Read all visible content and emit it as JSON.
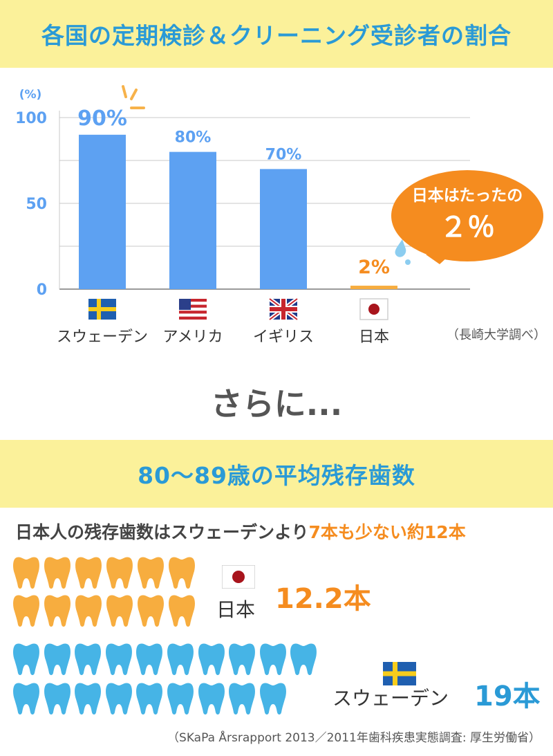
{
  "chart_title": "各国の定期検診＆クリーニング受診者の割合",
  "chart_data": {
    "type": "bar",
    "categories": [
      "スウェーデン",
      "アメリカ",
      "イギリス",
      "日本"
    ],
    "values": [
      90,
      80,
      70,
      2
    ],
    "value_labels": [
      "90%",
      "80%",
      "70%",
      "2%"
    ],
    "ylabel": "(%)",
    "ylim": [
      0,
      100
    ],
    "yticks": [
      "0",
      "50",
      "100"
    ],
    "grid": true,
    "colors": {
      "bar": "#5da1f2",
      "highlight_bar": "#f7ad3f",
      "axis_text": "#5da1f2"
    }
  },
  "flags": [
    "sweden-flag",
    "usa-flag",
    "uk-flag",
    "japan-flag"
  ],
  "callout": {
    "line1": "日本はたったの",
    "line2": "２％",
    "color": "#f58c1f"
  },
  "source1": "（長崎大学調べ）",
  "transition": "さらに...",
  "section2_title": "80〜89歳の平均残存歯数",
  "teeth_headline": {
    "part1": "日本人の残存歯数はスウェーデンより",
    "highlight": "7本も少ない約12本"
  },
  "japan": {
    "label": "日本",
    "count": "12.2本",
    "teeth": 12,
    "color": "#f7ad3f",
    "count_color": "#f58c1f"
  },
  "sweden": {
    "label": "スウェーデン",
    "count": "19本",
    "teeth": 19,
    "color": "#46b4e6",
    "count_color": "#2a9ad6"
  },
  "source2": "（SKaPa Årsrapport 2013／2011年歯科疾患実態調査: 厚生労働省）"
}
